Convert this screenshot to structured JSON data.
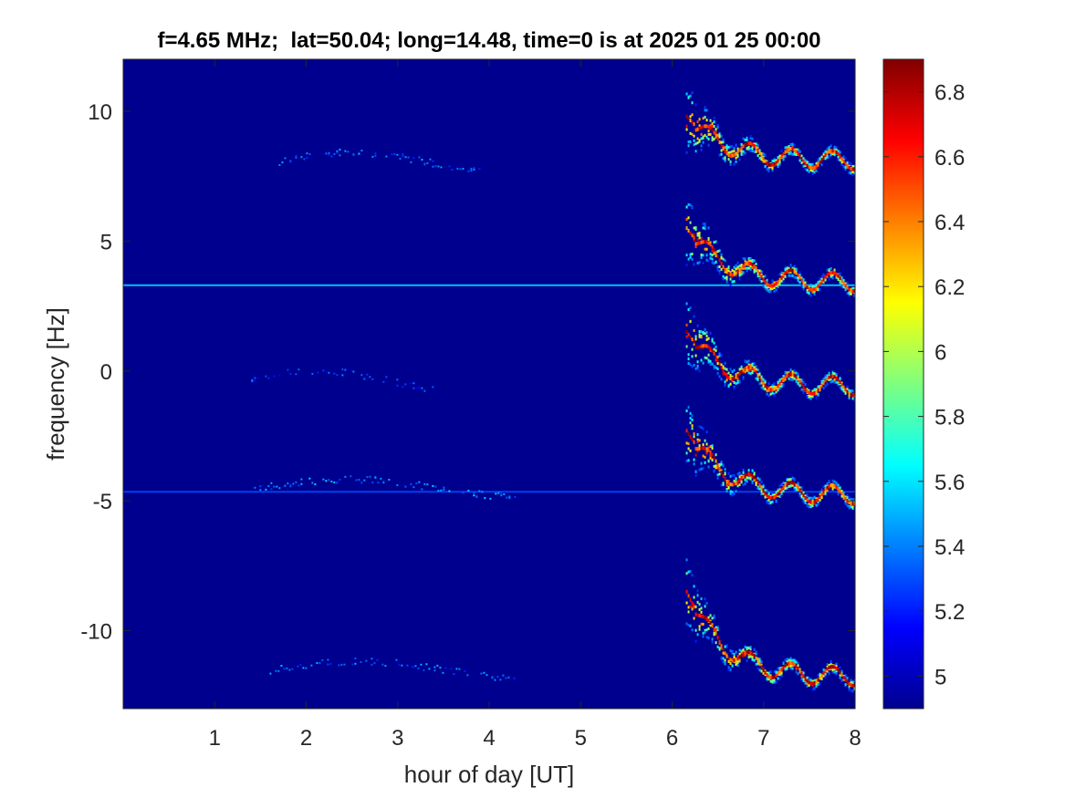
{
  "chart_data": {
    "type": "heatmap",
    "title": "f=4.65 MHz;  lat=50.04; long=14.48, time=0 is at 2025 01 25 00:00",
    "xlabel": "hour of day [UT]",
    "ylabel": "frequency [Hz]",
    "xlim": [
      0,
      8
    ],
    "ylim": [
      -13,
      12
    ],
    "xticks": [
      1,
      2,
      3,
      4,
      5,
      6,
      7,
      8
    ],
    "xtick_labels": [
      "1",
      "2",
      "3",
      "4",
      "5",
      "6",
      "7",
      "8"
    ],
    "yticks": [
      10,
      5,
      0,
      -5,
      -10
    ],
    "ytick_labels": [
      "10",
      "5",
      "0",
      "-5",
      "-10"
    ],
    "colorbar": {
      "colormap": "jet",
      "range": [
        4.9,
        6.9
      ],
      "ticks": [
        6.8,
        6.6,
        6.4,
        6.2,
        6,
        5.8,
        5.6,
        5.4,
        5.2,
        5
      ],
      "tick_labels": [
        "6.8",
        "6.6",
        "6.4",
        "6.2",
        "6",
        "5.8",
        "5.6",
        "5.4",
        "5.2",
        "5"
      ]
    },
    "background_color": "#00008f",
    "features": [
      {
        "kind": "horizontal-line",
        "y": 3.3,
        "x_range": [
          0,
          8
        ],
        "level": 5.6
      },
      {
        "kind": "horizontal-line",
        "y": -4.65,
        "x_range": [
          0,
          8
        ],
        "level": 5.3
      },
      {
        "kind": "weak-trace",
        "x_range": [
          1.7,
          3.9
        ],
        "y_center": 8.1,
        "level": 5.3
      },
      {
        "kind": "weak-trace",
        "x_range": [
          1.4,
          3.4
        ],
        "y_center": -0.3,
        "level": 5.2
      },
      {
        "kind": "weak-trace",
        "x_range": [
          1.4,
          4.3
        ],
        "y_center": -4.5,
        "level": 5.35
      },
      {
        "kind": "weak-trace",
        "x_range": [
          1.6,
          4.3
        ],
        "y_center": -11.5,
        "level": 5.3
      },
      {
        "kind": "strong-trace",
        "x_range": [
          6.15,
          8.0
        ],
        "start_y": 9.8,
        "end_y": 8.1,
        "level": 6.9
      },
      {
        "kind": "strong-trace",
        "x_range": [
          6.15,
          8.0
        ],
        "start_y": 5.5,
        "end_y": 3.4,
        "level": 6.9
      },
      {
        "kind": "strong-trace",
        "x_range": [
          6.15,
          8.0
        ],
        "start_y": 1.5,
        "end_y": -0.6,
        "level": 6.9
      },
      {
        "kind": "strong-trace",
        "x_range": [
          6.15,
          8.0
        ],
        "start_y": -2.3,
        "end_y": -4.8,
        "level": 6.9
      },
      {
        "kind": "strong-trace",
        "x_range": [
          6.15,
          8.0
        ],
        "start_y": -8.5,
        "end_y": -11.8,
        "level": 6.9
      }
    ]
  }
}
